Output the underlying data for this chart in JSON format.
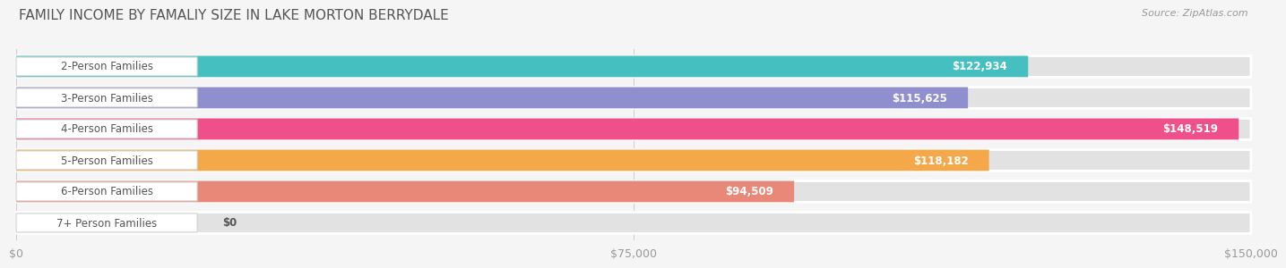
{
  "title": "FAMILY INCOME BY FAMALIY SIZE IN LAKE MORTON BERRYDALE",
  "source": "Source: ZipAtlas.com",
  "categories": [
    "2-Person Families",
    "3-Person Families",
    "4-Person Families",
    "5-Person Families",
    "6-Person Families",
    "7+ Person Families"
  ],
  "values": [
    122934,
    115625,
    148519,
    118182,
    94509,
    0
  ],
  "bar_colors": [
    "#45bfbf",
    "#8f8fcf",
    "#f0508a",
    "#f5a84a",
    "#e88878",
    "#a0c4e8"
  ],
  "background_color": "#f5f5f5",
  "bar_bg_color": "#e2e2e2",
  "value_labels": [
    "$122,934",
    "$115,625",
    "$148,519",
    "$118,182",
    "$94,509",
    "$0"
  ],
  "xlim_max": 150000,
  "xticks": [
    0,
    75000,
    150000
  ],
  "xticklabels": [
    "$0",
    "$75,000",
    "$150,000"
  ],
  "title_fontsize": 11,
  "source_fontsize": 8,
  "bar_label_fontsize": 8.5,
  "value_fontsize": 8.5
}
